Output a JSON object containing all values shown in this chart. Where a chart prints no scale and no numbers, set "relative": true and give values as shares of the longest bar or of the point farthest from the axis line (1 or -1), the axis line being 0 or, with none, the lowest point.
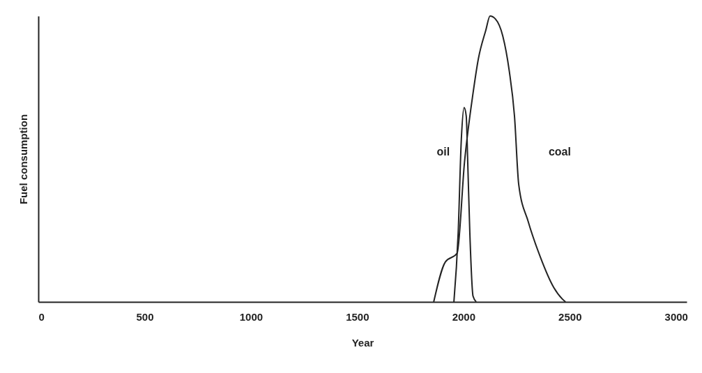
{
  "chart_data": {
    "type": "line",
    "relative": true,
    "xlabel": "Year",
    "ylabel": "Fuel consumption",
    "xlim": [
      0,
      3050
    ],
    "xticks": [
      0,
      500,
      1000,
      1500,
      2000,
      2500,
      3000
    ],
    "grid": false,
    "legend": false,
    "marker": "none",
    "line_style": "solid",
    "series": [
      {
        "name": "coal",
        "color": "#222222",
        "x": [
          1860,
          1915,
          1970,
          2005,
          2045,
          2070,
          2105,
          2125,
          2150,
          2185,
          2215,
          2240,
          2260,
          2305,
          2360,
          2425,
          2465,
          2480
        ],
        "values": [
          0,
          0.14,
          0.17,
          0.49,
          0.73,
          0.85,
          0.95,
          1,
          0.99,
          0.93,
          0.81,
          0.65,
          0.41,
          0.28,
          0.16,
          0.05,
          0.01,
          0
        ]
      },
      {
        "name": "oil",
        "color": "#222222",
        "x": [
          1955,
          1975,
          1990,
          2003,
          2013,
          2020,
          2030,
          2045,
          2060
        ],
        "values": [
          0,
          0.24,
          0.57,
          0.68,
          0.65,
          0.49,
          0.24,
          0.02,
          0
        ]
      }
    ]
  }
}
